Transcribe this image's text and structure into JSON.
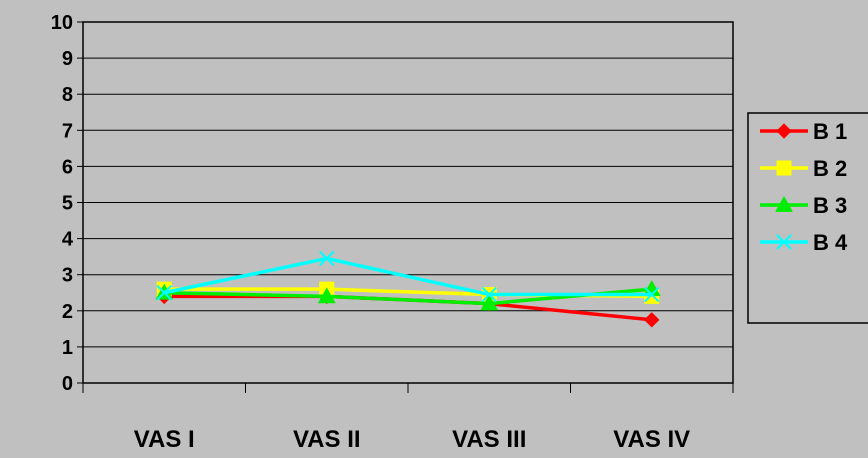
{
  "chart_data": {
    "type": "line",
    "categories": [
      "VAS I",
      "VAS II",
      "VAS III",
      "VAS IV"
    ],
    "ylim": [
      0,
      10
    ],
    "yticks": [
      0,
      1,
      2,
      3,
      4,
      5,
      6,
      7,
      8,
      9,
      10
    ],
    "grid": true,
    "legend_position": "right",
    "series": [
      {
        "name": "B 1",
        "color": "#ff0000",
        "marker": "diamond",
        "values": [
          2.4,
          2.4,
          2.2,
          1.75
        ]
      },
      {
        "name": "B 2",
        "color": "#ffff00",
        "marker": "square",
        "values": [
          2.6,
          2.6,
          2.45,
          2.4
        ]
      },
      {
        "name": "B 3",
        "color": "#00ee00",
        "marker": "triangle",
        "values": [
          2.5,
          2.4,
          2.2,
          2.6
        ]
      },
      {
        "name": "B 4",
        "color": "#00ffff",
        "marker": "x",
        "values": [
          2.5,
          3.45,
          2.45,
          2.45
        ]
      }
    ]
  }
}
